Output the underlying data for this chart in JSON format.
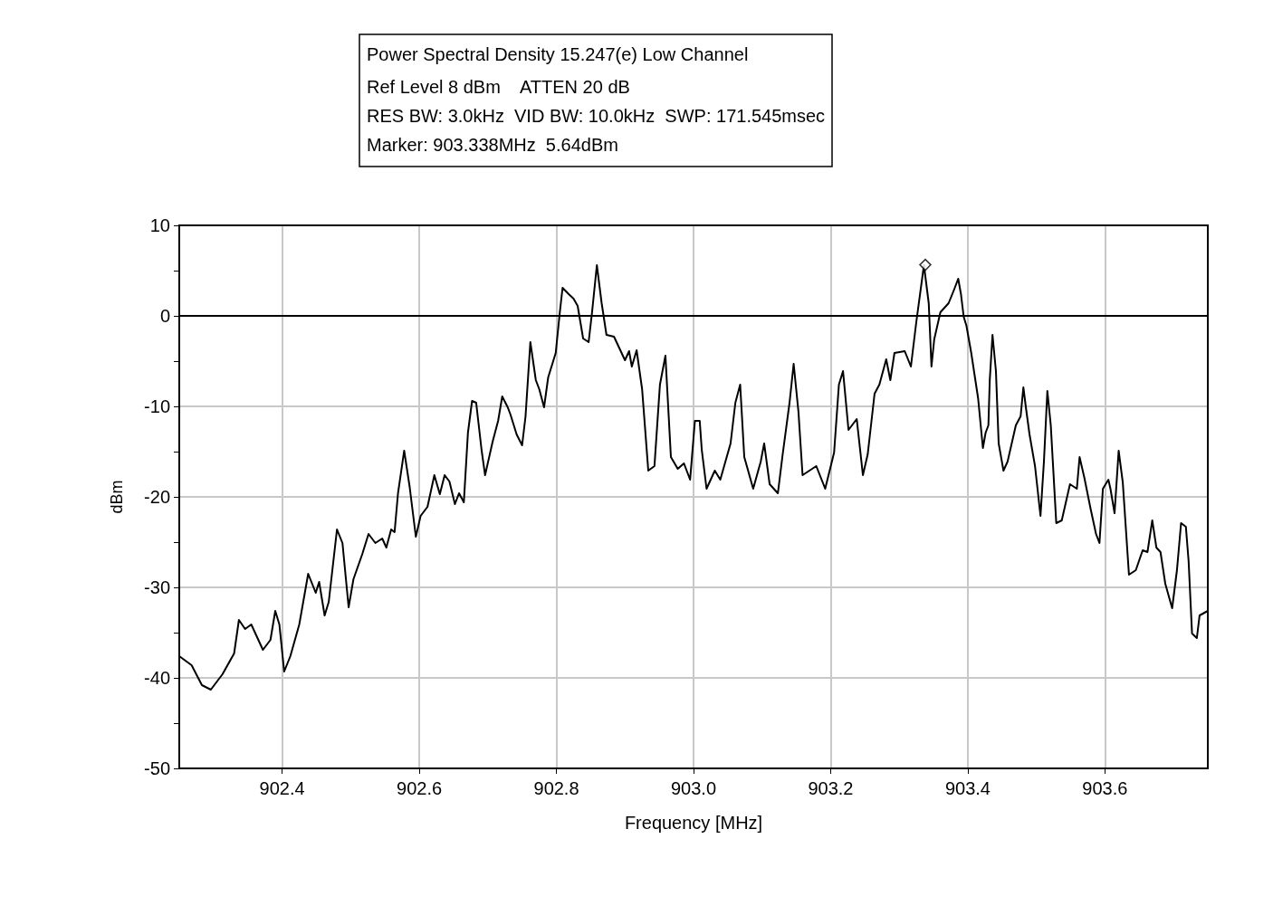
{
  "chart_data": {
    "type": "line",
    "title": "Power Spectral Density 15.247(e) Low Channel",
    "annotations": [
      "Ref Level 8 dBm    ATTEN 20 dB",
      "RES BW: 3.0kHz  VID BW: 10.0kHz  SWP: 171.545msec",
      "Marker: 903.338MHz  5.64dBm"
    ],
    "xlabel": "Frequency [MHz]",
    "ylabel": "dBm",
    "xlim": [
      902.25,
      903.75
    ],
    "xticks": [
      902.4,
      902.6,
      902.8,
      {
        "value": 903,
        "label": "903.0"
      },
      903.2,
      903.4,
      903.6
    ],
    "ylim": [
      -50,
      10
    ],
    "yticks": [
      -50,
      -40,
      -30,
      -20,
      -10,
      0,
      10
    ],
    "grid": true,
    "line_style": "solid",
    "marker": "none",
    "ref_lines": [
      {
        "axis": "y",
        "value": 0,
        "color": "#000000"
      }
    ],
    "series": [
      {
        "color": "#000000",
        "x": [
          902.25,
          902.268,
          902.283,
          902.296,
          902.313,
          902.33,
          902.337,
          902.346,
          902.355,
          902.372,
          902.383,
          902.39,
          902.396,
          902.403,
          902.412,
          902.425,
          902.438,
          902.449,
          902.454,
          902.462,
          902.468,
          902.48,
          902.488,
          902.497,
          902.504,
          902.517,
          902.526,
          902.536,
          902.546,
          902.552,
          902.559,
          902.564,
          902.569,
          902.578,
          902.586,
          902.595,
          902.602,
          902.612,
          902.622,
          902.63,
          902.637,
          902.644,
          902.652,
          902.658,
          902.665,
          902.671,
          902.677,
          902.683,
          902.691,
          902.696,
          902.707,
          902.715,
          902.721,
          902.729,
          902.733,
          902.742,
          902.75,
          902.755,
          902.762,
          902.77,
          902.775,
          902.782,
          902.788,
          902.799,
          902.805,
          902.809,
          902.818,
          902.825,
          902.831,
          902.839,
          902.847,
          902.852,
          902.859,
          902.866,
          902.873,
          902.884,
          902.892,
          902.9,
          902.906,
          902.91,
          902.917,
          902.925,
          902.934,
          902.943,
          902.951,
          902.959,
          902.967,
          902.977,
          902.986,
          902.995,
          903.002,
          903.009,
          903.012,
          903.019,
          903.031,
          903.039,
          903.054,
          903.061,
          903.068,
          903.074,
          903.087,
          903.098,
          903.103,
          903.111,
          903.123,
          903.13,
          903.14,
          903.146,
          903.153,
          903.159,
          903.169,
          903.179,
          903.192,
          903.205,
          903.212,
          903.218,
          903.226,
          903.238,
          903.247,
          903.254,
          903.264,
          903.271,
          903.281,
          903.287,
          903.293,
          903.308,
          903.317,
          903.325,
          903.336,
          903.343,
          903.347,
          903.351,
          903.36,
          903.372,
          903.38,
          903.386,
          903.39,
          903.394,
          903.398,
          903.405,
          903.415,
          903.422,
          903.426,
          903.43,
          903.432,
          903.436,
          903.441,
          903.445,
          903.452,
          903.458,
          903.464,
          903.47,
          903.477,
          903.481,
          903.485,
          903.49,
          903.498,
          903.506,
          903.511,
          903.516,
          903.521,
          903.529,
          903.537,
          903.549,
          903.559,
          903.563,
          903.57,
          903.579,
          903.587,
          903.592,
          903.597,
          903.605,
          903.608,
          903.614,
          903.62,
          903.626,
          903.635,
          903.645,
          903.655,
          903.662,
          903.669,
          903.675,
          903.681,
          903.688,
          903.698,
          903.705,
          903.711,
          903.718,
          903.722,
          903.727,
          903.734,
          903.738,
          903.75
        ],
        "values": [
          -37.6,
          -38.6,
          -40.8,
          -41.3,
          -39.6,
          -37.3,
          -33.6,
          -34.6,
          -34.1,
          -36.9,
          -35.8,
          -32.6,
          -34.1,
          -39.3,
          -37.6,
          -34.1,
          -28.5,
          -30.6,
          -29.4,
          -33.1,
          -31.6,
          -23.6,
          -25.1,
          -32.2,
          -29.1,
          -26.3,
          -24.1,
          -25.1,
          -24.6,
          -25.6,
          -23.6,
          -23.9,
          -19.6,
          -14.9,
          -18.9,
          -24.4,
          -22.1,
          -21.1,
          -17.6,
          -19.7,
          -17.6,
          -18.3,
          -20.8,
          -19.6,
          -20.6,
          -12.9,
          -9.4,
          -9.6,
          -14.9,
          -17.6,
          -13.9,
          -11.6,
          -8.9,
          -10.1,
          -10.9,
          -13.1,
          -14.3,
          -11.1,
          -2.9,
          -7.1,
          -8.1,
          -10.1,
          -6.8,
          -4.1,
          0.4,
          3.1,
          2.4,
          1.9,
          1.1,
          -2.5,
          -2.9,
          0.4,
          5.6,
          1.4,
          -2.1,
          -2.3,
          -3.6,
          -4.9,
          -3.9,
          -5.6,
          -3.8,
          -8.1,
          -17.1,
          -16.6,
          -7.6,
          -4.4,
          -15.6,
          -16.9,
          -16.3,
          -18.1,
          -11.6,
          -11.6,
          -14.8,
          -19.1,
          -17.1,
          -18.1,
          -14.1,
          -9.6,
          -7.6,
          -15.6,
          -19.1,
          -16.1,
          -14.1,
          -18.6,
          -19.6,
          -15.3,
          -9.6,
          -5.3,
          -10.6,
          -17.6,
          -17.1,
          -16.6,
          -19.1,
          -15.1,
          -7.6,
          -6.1,
          -12.6,
          -11.4,
          -17.6,
          -15.3,
          -8.6,
          -7.6,
          -4.8,
          -7.1,
          -4.1,
          -3.9,
          -5.6,
          -0.6,
          5.6,
          1.4,
          -5.6,
          -2.6,
          0.4,
          1.4,
          2.9,
          4.1,
          2.4,
          -0.1,
          -1.1,
          -4.1,
          -9.1,
          -14.6,
          -12.9,
          -12.1,
          -7.1,
          -2.1,
          -6.1,
          -14.1,
          -17.1,
          -16.1,
          -14.1,
          -12.1,
          -11.1,
          -7.9,
          -10.3,
          -13.1,
          -16.6,
          -22.1,
          -16.1,
          -8.3,
          -12.1,
          -22.9,
          -22.6,
          -18.6,
          -19.1,
          -15.6,
          -17.9,
          -21.3,
          -24.1,
          -25.1,
          -19.1,
          -18.1,
          -19.1,
          -21.8,
          -14.9,
          -18.4,
          -28.6,
          -28.1,
          -25.9,
          -26.1,
          -22.6,
          -25.6,
          -26.1,
          -29.6,
          -32.3,
          -28.1,
          -22.9,
          -23.3,
          -27.1,
          -35.1,
          -35.6,
          -33.1,
          -32.6
        ]
      },
      {
        "type": "scatter",
        "color": "#000000",
        "marker": "diamond",
        "x": [
          903.338
        ],
        "values": [
          5.64
        ]
      }
    ]
  }
}
